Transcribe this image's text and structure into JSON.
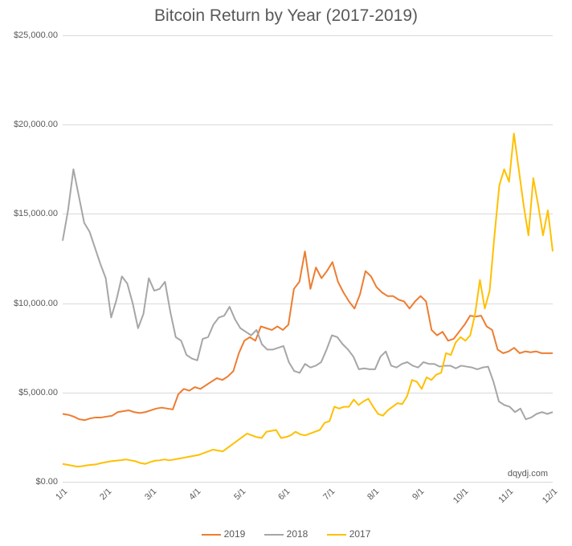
{
  "chart": {
    "type": "line",
    "title": "Bitcoin Return by Year (2017-2019)",
    "title_fontsize": 21,
    "title_color": "#595959",
    "background_color": "#ffffff",
    "grid_color": "#d9d9d9",
    "axis_label_color": "#595959",
    "axis_label_fontsize": 11,
    "watermark": "dqydj.com",
    "ylim": [
      0,
      25000
    ],
    "ytick_step": 5000,
    "ytick_labels": [
      "$0.00",
      "$5,000.00",
      "$10,000.00",
      "$15,000.00",
      "$20,000.00",
      "$25,000.00"
    ],
    "x_categories": [
      "1/1",
      "2/1",
      "3/1",
      "4/1",
      "5/1",
      "6/1",
      "7/1",
      "8/1",
      "9/1",
      "10/1",
      "11/1",
      "12/1"
    ],
    "line_width": 2,
    "series": [
      {
        "name": "2019",
        "color": "#ed7d31",
        "values": [
          3800,
          3750,
          3650,
          3500,
          3450,
          3550,
          3600,
          3600,
          3650,
          3700,
          3900,
          3950,
          4000,
          3900,
          3850,
          3900,
          4000,
          4100,
          4150,
          4100,
          4050,
          4900,
          5200,
          5100,
          5300,
          5200,
          5400,
          5600,
          5800,
          5700,
          5900,
          6200,
          7200,
          7900,
          8100,
          7900,
          8700,
          8600,
          8500,
          8700,
          8500,
          8800,
          10800,
          11200,
          12900,
          10800,
          12000,
          11400,
          11800,
          12300,
          11200,
          10600,
          10100,
          9700,
          10500,
          11800,
          11500,
          10900,
          10600,
          10400,
          10400,
          10200,
          10100,
          9700,
          10100,
          10400,
          10100,
          8500,
          8200,
          8400,
          7900,
          8000,
          8400,
          8800,
          9300,
          9250,
          9300,
          8700,
          8500,
          7400,
          7200,
          7300,
          7500,
          7200,
          7300,
          7250,
          7300,
          7200,
          7200,
          7200
        ]
      },
      {
        "name": "2018",
        "color": "#a6a6a6",
        "values": [
          13500,
          15200,
          17500,
          16000,
          14500,
          14000,
          13100,
          12200,
          11400,
          9200,
          10200,
          11500,
          11100,
          10000,
          8600,
          9400,
          11400,
          10700,
          10800,
          11200,
          9500,
          8100,
          7900,
          7100,
          6900,
          6800,
          8000,
          8100,
          8800,
          9200,
          9300,
          9800,
          9100,
          8600,
          8400,
          8200,
          8500,
          7700,
          7400,
          7400,
          7500,
          7600,
          6700,
          6200,
          6100,
          6600,
          6400,
          6500,
          6700,
          7400,
          8200,
          8100,
          7700,
          7400,
          7000,
          6300,
          6350,
          6300,
          6300,
          7000,
          7300,
          6500,
          6400,
          6600,
          6700,
          6500,
          6400,
          6700,
          6600,
          6600,
          6450,
          6500,
          6500,
          6350,
          6500,
          6450,
          6400,
          6300,
          6400,
          6450,
          5600,
          4500,
          4300,
          4200,
          3900,
          4100,
          3500,
          3600,
          3800,
          3900,
          3800,
          3900
        ]
      },
      {
        "name": "2017",
        "color": "#ffc000",
        "values": [
          1000,
          950,
          900,
          850,
          870,
          920,
          950,
          980,
          1050,
          1100,
          1150,
          1180,
          1210,
          1250,
          1200,
          1150,
          1050,
          1000,
          1100,
          1180,
          1200,
          1250,
          1200,
          1250,
          1300,
          1350,
          1400,
          1450,
          1500,
          1600,
          1700,
          1800,
          1750,
          1700,
          1900,
          2100,
          2300,
          2500,
          2700,
          2600,
          2500,
          2450,
          2800,
          2850,
          2900,
          2450,
          2500,
          2600,
          2800,
          2650,
          2600,
          2700,
          2800,
          2900,
          3300,
          3400,
          4200,
          4100,
          4200,
          4200,
          4600,
          4300,
          4500,
          4650,
          4200,
          3800,
          3700,
          4000,
          4200,
          4400,
          4350,
          4800,
          5700,
          5600,
          5200,
          5850,
          5700,
          6000,
          6100,
          7200,
          7100,
          7800,
          8100,
          7900,
          8200,
          9400,
          11300,
          9700,
          10700,
          13800,
          16600,
          17500,
          16800,
          19500,
          17500,
          15500,
          13800,
          17000,
          15500,
          13800,
          15200,
          12900
        ]
      }
    ],
    "legend_fontsize": 12
  }
}
